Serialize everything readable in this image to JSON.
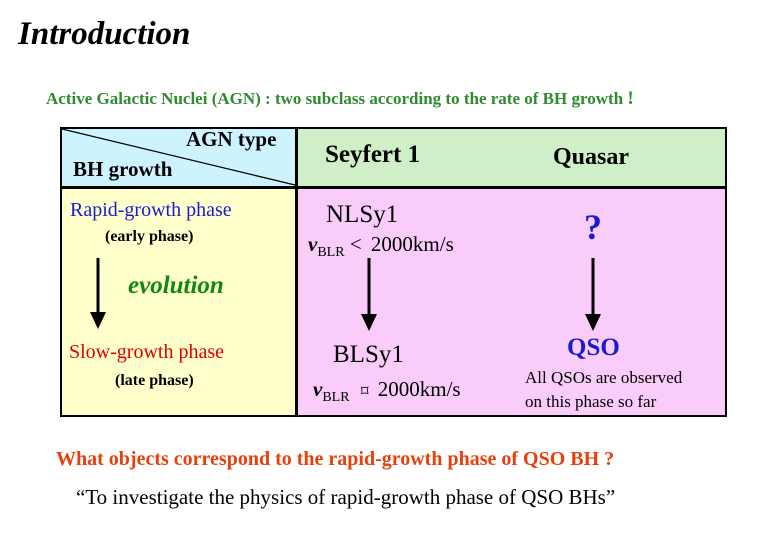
{
  "slide": {
    "title": "Introduction",
    "subtitle": "Active Galactic Nuclei (AGN) : two subclass according to the rate of BH growth",
    "subtitle_mark": "!"
  },
  "table": {
    "corner_top": "AGN type",
    "corner_bottom": "BH growth",
    "col_seyfert": "Seyfert 1",
    "col_quasar": "Quasar",
    "rapid_label": "Rapid-growth phase",
    "rapid_sub": "(early phase)",
    "evolution": "evolution",
    "slow_label": "Slow-growth phase",
    "slow_sub": "(late phase)",
    "nlsy1": "NLSy1",
    "nlsy1_v": "v",
    "nlsy1_sub": "BLR",
    "nlsy1_rel": "<",
    "nlsy1_value": "2000km/s",
    "unknown": "?",
    "blsy1": "BLSy1",
    "blsy1_v": "v",
    "blsy1_sub": "BLR",
    "blsy1_rel": "⌑",
    "blsy1_value": "2000km/s",
    "qso": "QSO",
    "qso_note_1": "All QSOs are observed",
    "qso_note_2": "on this phase so far"
  },
  "footer": {
    "question": "What objects correspond to the rapid-growth phase of QSO BH ?",
    "quote": "“To investigate the physics of rapid-growth phase of QSO BHs”"
  },
  "colors": {
    "corner_bg": "#cdf3ff",
    "header_bg": "#cfefc9",
    "left_bg": "#ffffcc",
    "right_bg": "#f9ccf9",
    "subtitle": "#2e8b2e",
    "question": "#e8400c"
  }
}
